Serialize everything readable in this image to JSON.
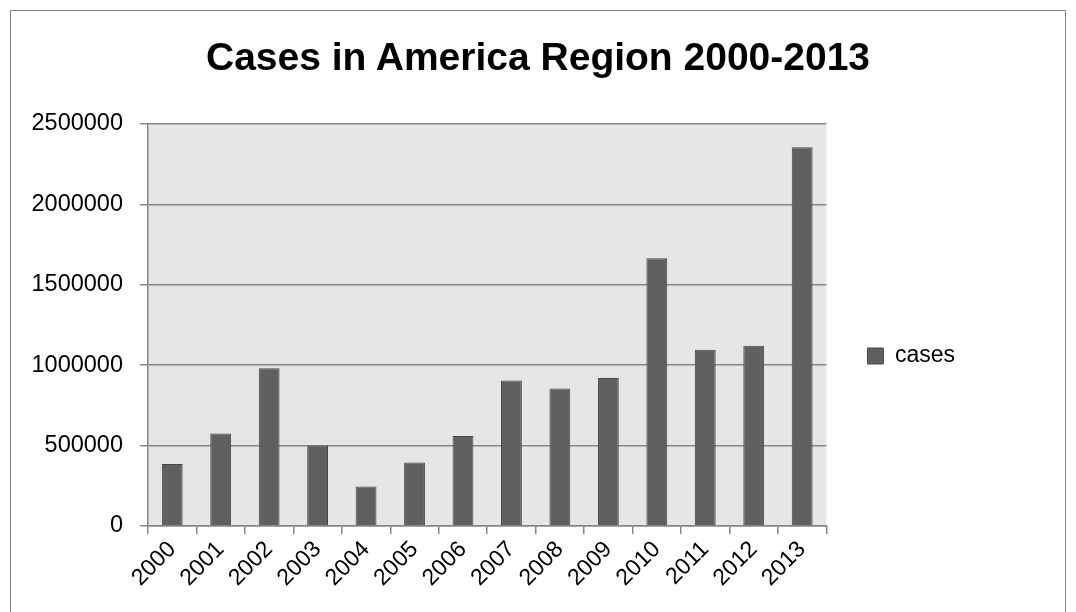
{
  "chart_data": {
    "type": "bar",
    "title": "Cases in America Region 2000-2013",
    "categories": [
      "2000",
      "2001",
      "2002",
      "2003",
      "2004",
      "2005",
      "2006",
      "2007",
      "2008",
      "2009",
      "2010",
      "2011",
      "2012",
      "2013"
    ],
    "series": [
      {
        "name": "cases",
        "color": "#606060",
        "values": [
          385000,
          575000,
          980000,
          500000,
          245000,
          395000,
          560000,
          905000,
          855000,
          920000,
          1665000,
          1095000,
          1120000,
          2355000
        ]
      }
    ],
    "ylim": [
      0,
      2500000
    ],
    "yticks": [
      0,
      500000,
      1000000,
      1500000,
      2000000,
      2500000
    ],
    "grid": "y",
    "legend": "right"
  }
}
